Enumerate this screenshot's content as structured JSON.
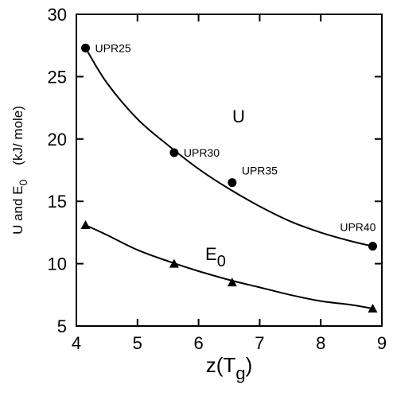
{
  "chart_data": {
    "type": "scatter",
    "title": "",
    "xlabel": {
      "main": "z(T",
      "sub": "g",
      "close": ")"
    },
    "ylabel": {
      "part1": "U and E",
      "sub": "0",
      "units": "(kJ/ mole)"
    },
    "xlim": [
      4,
      9
    ],
    "ylim": [
      5,
      30
    ],
    "xticks": [
      4,
      5,
      6,
      7,
      8,
      9
    ],
    "yticks": [
      5,
      10,
      15,
      20,
      25,
      30
    ],
    "grid": false,
    "series": [
      {
        "name": "U",
        "marker": "circle",
        "points": [
          {
            "x": 4.15,
            "y": 27.3,
            "label": "UPR25"
          },
          {
            "x": 5.6,
            "y": 18.9,
            "label": "UPR30"
          },
          {
            "x": 6.55,
            "y": 16.5,
            "label": "UPR35"
          },
          {
            "x": 8.85,
            "y": 11.4,
            "label": "UPR40"
          }
        ],
        "fit": [
          [
            4.15,
            27.3
          ],
          [
            4.5,
            24.5
          ],
          [
            5.0,
            21.6
          ],
          [
            5.5,
            19.5
          ],
          [
            6.0,
            17.6
          ],
          [
            6.5,
            16.0
          ],
          [
            7.0,
            14.6
          ],
          [
            7.5,
            13.4
          ],
          [
            8.0,
            12.5
          ],
          [
            8.5,
            11.8
          ],
          [
            8.85,
            11.4
          ]
        ]
      },
      {
        "name": "E",
        "name_sub": "0",
        "marker": "triangle",
        "points": [
          {
            "x": 4.15,
            "y": 13.1
          },
          {
            "x": 5.6,
            "y": 10.0
          },
          {
            "x": 6.55,
            "y": 8.5
          },
          {
            "x": 8.85,
            "y": 6.4
          }
        ],
        "fit": [
          [
            4.15,
            13.1
          ],
          [
            4.5,
            12.3
          ],
          [
            5.0,
            11.1
          ],
          [
            5.5,
            10.2
          ],
          [
            6.0,
            9.4
          ],
          [
            6.5,
            8.7
          ],
          [
            7.0,
            8.1
          ],
          [
            7.5,
            7.5
          ],
          [
            8.0,
            7.0
          ],
          [
            8.5,
            6.7
          ],
          [
            8.85,
            6.4
          ]
        ]
      }
    ]
  }
}
